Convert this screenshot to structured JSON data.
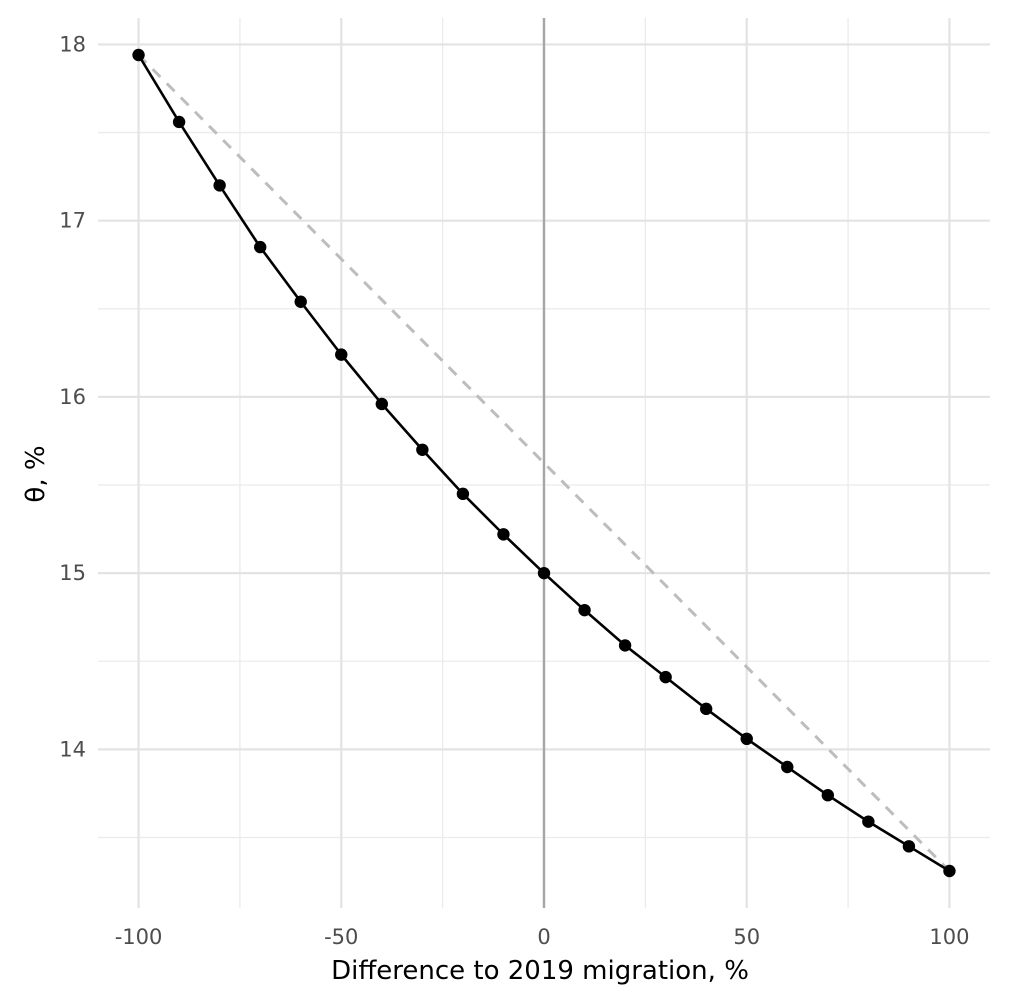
{
  "chart_data": {
    "type": "line",
    "xlabel": "Difference to 2019 migration, %",
    "ylabel": "θ, %",
    "xlim": [
      -110,
      110
    ],
    "ylim": [
      13.1,
      18.15
    ],
    "x_ticks": [
      -100,
      -50,
      0,
      50,
      100
    ],
    "x_tick_labels": [
      "-100",
      "-50",
      "0",
      "50",
      "100"
    ],
    "y_ticks": [
      14,
      15,
      16,
      17,
      18
    ],
    "y_tick_labels": [
      "14",
      "15",
      "16",
      "17",
      "18"
    ],
    "grid": true,
    "reference_line_x": 0,
    "series": [
      {
        "style": "solid-with-points",
        "color": "#000000",
        "x": [
          -100,
          -90,
          -80,
          -70,
          -60,
          -50,
          -40,
          -30,
          -20,
          -10,
          0,
          10,
          20,
          30,
          40,
          50,
          60,
          70,
          80,
          90,
          100
        ],
        "y": [
          17.94,
          17.56,
          17.2,
          16.85,
          16.54,
          16.24,
          15.96,
          15.7,
          15.45,
          15.22,
          15.0,
          14.79,
          14.59,
          14.41,
          14.23,
          14.06,
          13.9,
          13.74,
          13.59,
          13.45,
          13.31
        ]
      },
      {
        "style": "dashed",
        "color": "#bdbdbd",
        "x": [
          -100,
          100
        ],
        "y": [
          17.94,
          13.31
        ]
      }
    ]
  }
}
